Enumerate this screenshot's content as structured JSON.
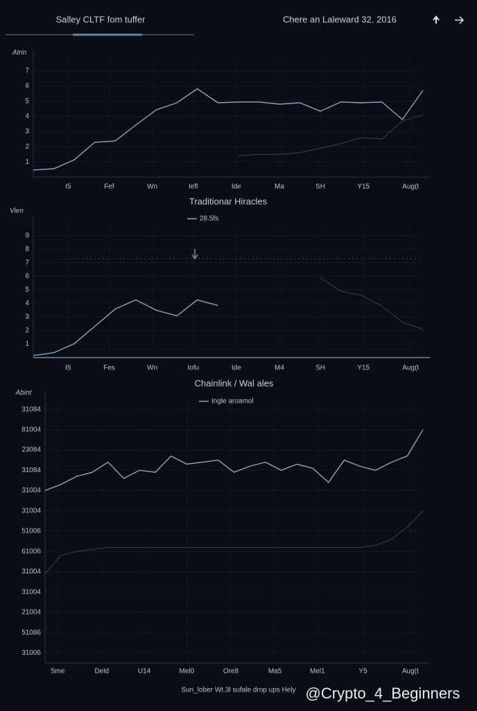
{
  "header": {
    "title": "Salley CLTF fom tuffer",
    "date": "Chere an Laleward 32. 2016"
  },
  "footer": "Sun_lober Wt.3l sufale drop ups Hely",
  "watermark": "@Crypto_4_Beginners",
  "chart_data": [
    {
      "type": "line",
      "ylabel": "Atrin",
      "x": [
        0,
        1,
        2,
        3,
        4,
        5,
        6,
        7,
        8,
        9,
        10,
        11,
        12,
        13,
        14,
        15,
        16,
        17,
        18,
        19
      ],
      "xlim": [
        0,
        19
      ],
      "xticks": [
        {
          "value": 1.7,
          "label": "I5"
        },
        {
          "value": 3.7,
          "label": "Fef"
        },
        {
          "value": 5.8,
          "label": "Wn"
        },
        {
          "value": 7.8,
          "label": "Iefl"
        },
        {
          "value": 9.9,
          "label": "Ide"
        },
        {
          "value": 12,
          "label": "Ma"
        },
        {
          "value": 14,
          "label": "SH"
        },
        {
          "value": 16.1,
          "label": "Y15"
        },
        {
          "value": 18.4,
          "label": "Aug(t"
        }
      ],
      "ylim": [
        0,
        8
      ],
      "yticks": [
        1,
        2,
        3,
        4,
        5,
        6,
        7
      ],
      "grid": true,
      "series": [
        {
          "name": null,
          "color": "#8ea6bd",
          "values": [
            0.46,
            0.55,
            1.14,
            2.29,
            2.38,
            3.43,
            4.43,
            4.89,
            5.81,
            4.89,
            4.94,
            4.94,
            4.8,
            4.89,
            4.34,
            4.94,
            4.89,
            4.94,
            3.79,
            5.71
          ]
        },
        {
          "name": null,
          "color": "#34465a",
          "values": [
            null,
            null,
            null,
            null,
            null,
            null,
            null,
            null,
            null,
            null,
            1.4,
            1.5,
            1.5,
            1.6,
            1.9,
            2.2,
            2.6,
            2.5,
            3.7,
            4.1
          ]
        }
      ]
    },
    {
      "type": "line",
      "title": "Traditionar Hiracles",
      "ylabel": "Vien",
      "x": [
        0,
        1,
        2,
        3,
        4,
        5,
        6,
        7,
        8,
        9,
        10,
        11,
        12,
        13,
        14,
        15,
        16,
        17,
        18,
        19
      ],
      "xlim": [
        0,
        19
      ],
      "xticks": [
        {
          "value": 1.7,
          "label": "I5"
        },
        {
          "value": 3.7,
          "label": "Fes"
        },
        {
          "value": 5.8,
          "label": "Wn"
        },
        {
          "value": 7.8,
          "label": "Iofu"
        },
        {
          "value": 9.9,
          "label": "Ide"
        },
        {
          "value": 12,
          "label": "M4"
        },
        {
          "value": 14,
          "label": "SH"
        },
        {
          "value": 16.1,
          "label": "Y15"
        },
        {
          "value": 18.4,
          "label": "Aug(t"
        }
      ],
      "ylim": [
        0,
        10
      ],
      "yticks": [
        1,
        2,
        3,
        4,
        5,
        6,
        7,
        8,
        9
      ],
      "grid": true,
      "reference_line": 7.3,
      "series": [
        {
          "name": "28.5fs",
          "color": "#8ea6bd",
          "values": [
            0.15,
            0.36,
            1.03,
            2.31,
            3.59,
            4.26,
            3.49,
            3.08,
            4.26,
            3.85,
            null,
            null,
            null,
            null,
            null,
            null,
            null,
            null,
            null,
            null
          ]
        },
        {
          "name": null,
          "color": "#34465a",
          "values": [
            null,
            null,
            null,
            null,
            null,
            null,
            null,
            null,
            null,
            null,
            null,
            null,
            null,
            null,
            5.9,
            4.9,
            4.6,
            3.8,
            2.6,
            2.1
          ]
        }
      ]
    },
    {
      "type": "line",
      "title": "Chainlink / Wal ales",
      "ylabel": "Abint",
      "x": [
        0,
        1,
        2,
        3,
        4,
        5,
        6,
        7,
        8,
        9,
        10,
        11,
        12,
        13,
        14,
        15,
        16,
        17,
        18,
        19,
        20,
        21,
        22,
        23,
        24
      ],
      "xlim": [
        0,
        24
      ],
      "xticks": [
        {
          "value": 0.8,
          "label": "Sme"
        },
        {
          "value": 3.6,
          "label": "Deld"
        },
        {
          "value": 6.3,
          "label": "U14"
        },
        {
          "value": 9,
          "label": "Mel0"
        },
        {
          "value": 11.8,
          "label": "Ore8"
        },
        {
          "value": 14.6,
          "label": "Ma5"
        },
        {
          "value": 17.3,
          "label": "Mel1"
        },
        {
          "value": 20.2,
          "label": "Y5"
        },
        {
          "value": 23.2,
          "label": "Aug(t"
        }
      ],
      "ylim": [
        -0.5,
        12.5
      ],
      "yticks": [
        {
          "value": 0,
          "label": "31006"
        },
        {
          "value": 1,
          "label": "51086"
        },
        {
          "value": 2,
          "label": "21004"
        },
        {
          "value": 3,
          "label": "31004"
        },
        {
          "value": 4,
          "label": "31004"
        },
        {
          "value": 5,
          "label": "61006"
        },
        {
          "value": 6,
          "label": "51006"
        },
        {
          "value": 7,
          "label": "31004"
        },
        {
          "value": 8,
          "label": "31004"
        },
        {
          "value": 9,
          "label": "31084"
        },
        {
          "value": 10,
          "label": "23084"
        },
        {
          "value": 11,
          "label": "81004"
        },
        {
          "value": 12,
          "label": "31084"
        }
      ],
      "grid": true,
      "series": [
        {
          "name": "Ingle aroamol",
          "color": "#8ea6bd",
          "values": [
            8.0,
            8.3,
            8.7,
            8.9,
            9.4,
            8.6,
            9.0,
            8.9,
            9.7,
            9.3,
            9.4,
            9.5,
            8.9,
            9.2,
            9.4,
            9.0,
            9.3,
            9.1,
            8.4,
            9.5,
            9.2,
            9.0,
            9.4,
            9.7,
            11.0
          ]
        },
        {
          "name": null,
          "color": "#34465a",
          "values": [
            3.9,
            4.8,
            5.0,
            5.1,
            5.2,
            5.2,
            5.2,
            5.2,
            5.2,
            5.2,
            5.2,
            5.2,
            5.2,
            5.2,
            5.2,
            5.2,
            5.2,
            5.2,
            5.2,
            5.2,
            5.2,
            5.3,
            5.6,
            6.2,
            7.0
          ]
        }
      ]
    }
  ]
}
